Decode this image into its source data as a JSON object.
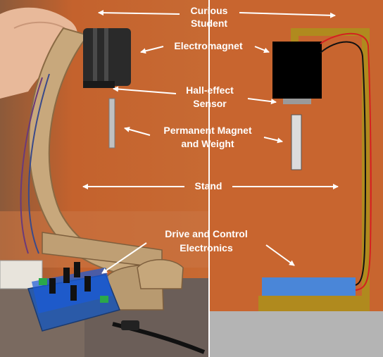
{
  "labels": {
    "curious_student": [
      "Curious",
      "Student"
    ],
    "electromagnet": "Electromagnet",
    "hall_effect_sensor": [
      "Hall-effect",
      "Sensor"
    ],
    "permanent_magnet": [
      "Permanent Magnet",
      "and Weight"
    ],
    "stand": "Stand",
    "drive_control": [
      "Drive and Control",
      "Electronics"
    ]
  },
  "colors": {
    "photo_wall": "#c4622d",
    "diagram_bg": "#c8652f",
    "stand_wood": "#b08a1e",
    "electromagnet_body": "#000000",
    "sensor": "#9a9a9a",
    "permanent_magnet": "#dcdcdc",
    "electronics_board": "#4a86d8",
    "floor": "#b4b4b4",
    "wire_red": "#d42020",
    "wire_black": "#111111",
    "arrow": "#ffffff"
  }
}
